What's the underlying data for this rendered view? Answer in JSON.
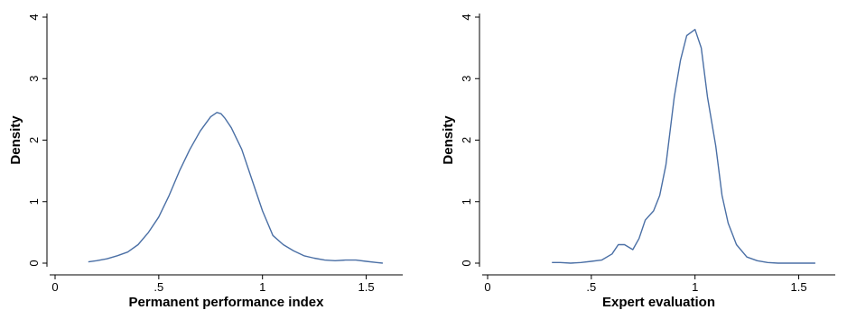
{
  "chart_data": [
    {
      "type": "line",
      "xlabel": "Permanent performance index",
      "ylabel": "Density",
      "xlim": [
        0,
        1.65
      ],
      "ylim": [
        0,
        4
      ],
      "xticks": [
        0,
        0.5,
        1,
        1.5
      ],
      "xtick_labels": [
        "0",
        ".5",
        "1",
        "1.5"
      ],
      "yticks": [
        0,
        1,
        2,
        3,
        4
      ],
      "ytick_labels": [
        "0",
        "1",
        "2",
        "3",
        "4"
      ],
      "grid": false,
      "color": "#4a6fa5",
      "series": [
        {
          "x": [
            0.16,
            0.2,
            0.25,
            0.3,
            0.35,
            0.4,
            0.45,
            0.5,
            0.55,
            0.6,
            0.65,
            0.7,
            0.75,
            0.78,
            0.8,
            0.82,
            0.85,
            0.9,
            0.95,
            1.0,
            1.05,
            1.1,
            1.15,
            1.2,
            1.25,
            1.3,
            1.35,
            1.4,
            1.45,
            1.5,
            1.55,
            1.58
          ],
          "y": [
            0.02,
            0.04,
            0.07,
            0.12,
            0.18,
            0.3,
            0.5,
            0.75,
            1.1,
            1.5,
            1.85,
            2.15,
            2.38,
            2.45,
            2.43,
            2.35,
            2.2,
            1.85,
            1.35,
            0.85,
            0.45,
            0.3,
            0.2,
            0.12,
            0.08,
            0.05,
            0.04,
            0.05,
            0.05,
            0.03,
            0.01,
            0.0
          ]
        }
      ]
    },
    {
      "type": "line",
      "xlabel": "Expert evaluation",
      "ylabel": "Density",
      "xlim": [
        0,
        1.65
      ],
      "ylim": [
        0,
        4
      ],
      "xticks": [
        0,
        0.5,
        1,
        1.5
      ],
      "xtick_labels": [
        "0",
        ".5",
        "1",
        "1.5"
      ],
      "yticks": [
        0,
        1,
        2,
        3,
        4
      ],
      "ytick_labels": [
        "0",
        "1",
        "2",
        "3",
        "4"
      ],
      "grid": false,
      "color": "#4a6fa5",
      "series": [
        {
          "x": [
            0.31,
            0.35,
            0.4,
            0.45,
            0.5,
            0.55,
            0.6,
            0.63,
            0.66,
            0.7,
            0.73,
            0.76,
            0.8,
            0.83,
            0.86,
            0.9,
            0.93,
            0.96,
            1.0,
            1.03,
            1.06,
            1.1,
            1.13,
            1.16,
            1.2,
            1.25,
            1.3,
            1.35,
            1.4,
            1.45,
            1.5,
            1.55,
            1.58
          ],
          "y": [
            0.01,
            0.01,
            0.0,
            0.01,
            0.03,
            0.05,
            0.15,
            0.3,
            0.3,
            0.22,
            0.4,
            0.7,
            0.85,
            1.1,
            1.6,
            2.7,
            3.3,
            3.7,
            3.8,
            3.5,
            2.7,
            1.9,
            1.1,
            0.65,
            0.3,
            0.1,
            0.04,
            0.01,
            0.0,
            0.0,
            0.0,
            0.0,
            0.0
          ]
        }
      ]
    }
  ]
}
